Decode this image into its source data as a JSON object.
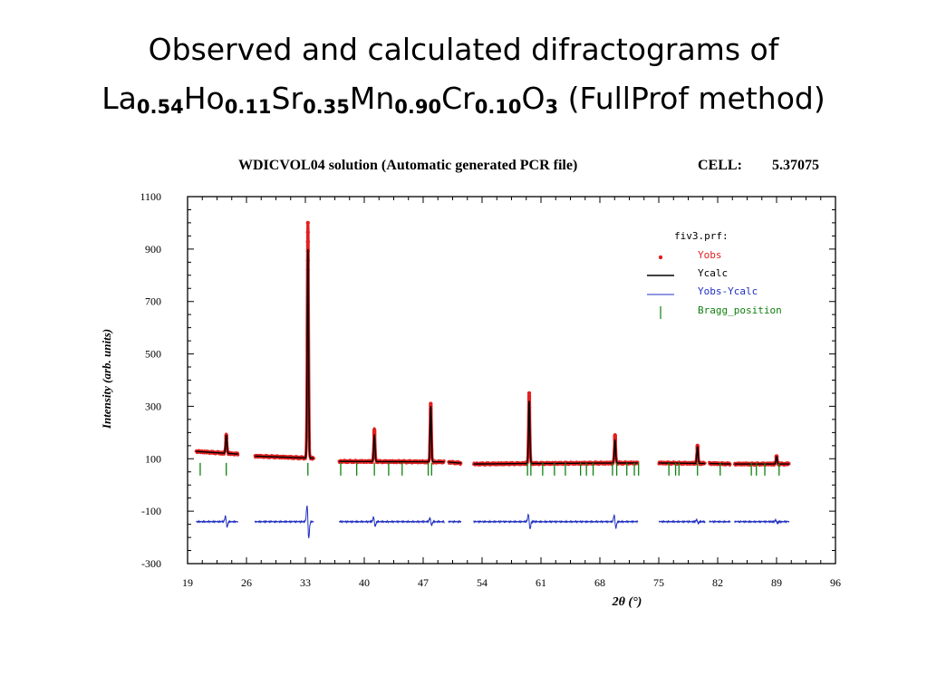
{
  "slide": {
    "title_line1": "Observed and calculated difractograms of",
    "formula": [
      {
        "el": "La",
        "sub": "0.54"
      },
      {
        "el": "Ho",
        "sub": "0.11"
      },
      {
        "el": "Sr",
        "sub": "0.35"
      },
      {
        "el": "Mn",
        "sub": "0.90"
      },
      {
        "el": "Cr",
        "sub": "0.10"
      },
      {
        "el": "O",
        "sub": "3"
      }
    ],
    "title_suffix": " (FullProf method)"
  },
  "chart_data": {
    "type": "line",
    "title": "WDICVOL04 solution (Automatic generated PCR file)",
    "cell_label": "CELL:",
    "cell_value": "5.37075",
    "xlabel": "2θ (°)",
    "ylabel": "Intensity (arb. units)",
    "xlim": [
      19,
      96
    ],
    "ylim": [
      -300,
      1100
    ],
    "xticks": [
      "19",
      "26",
      "33",
      "40",
      "47",
      "54",
      "61",
      "68",
      "75",
      "82",
      "89",
      "96"
    ],
    "yticks": [
      "1100",
      "900",
      "700",
      "500",
      "300",
      "100",
      "-100",
      "-300"
    ],
    "legend": {
      "title": "fiv3.prf:",
      "placement": "top-right",
      "entries": [
        {
          "name": "Yobs",
          "color": "#e02020",
          "marker": "dot"
        },
        {
          "name": "Ycalc",
          "color": "#000000",
          "marker": "line"
        },
        {
          "name": "Yobs-Ycalc",
          "color": "#2030c0",
          "marker": "line"
        },
        {
          "name": "Bragg_position",
          "color": "#108010",
          "marker": "tick"
        }
      ]
    },
    "segments": [
      [
        20,
        25
      ],
      [
        27,
        34
      ],
      [
        37,
        49.5
      ],
      [
        50,
        51.5
      ],
      [
        53,
        72.5
      ],
      [
        75,
        80.5
      ],
      [
        81,
        83.5
      ],
      [
        84,
        90.5
      ]
    ],
    "background": {
      "x": [
        20,
        25,
        27,
        34,
        37,
        49.5,
        53,
        60,
        72.5,
        75,
        80.5,
        81,
        83.5,
        84,
        90.5
      ],
      "y": [
        128,
        118,
        110,
        102,
        90,
        88,
        80,
        82,
        84,
        84,
        82,
        82,
        80,
        80,
        80
      ]
    },
    "observed_peaks": [
      {
        "x": 23.6,
        "height": 190
      },
      {
        "x": 33.3,
        "height": 1000
      },
      {
        "x": 41.2,
        "height": 210
      },
      {
        "x": 47.9,
        "height": 310
      },
      {
        "x": 59.6,
        "height": 350
      },
      {
        "x": 69.8,
        "height": 190
      },
      {
        "x": 79.6,
        "height": 150
      },
      {
        "x": 89.0,
        "height": 110
      }
    ],
    "calculated_peaks": [
      {
        "x": 23.6,
        "height": 190
      },
      {
        "x": 33.3,
        "height": 900
      },
      {
        "x": 41.2,
        "height": 190
      },
      {
        "x": 47.9,
        "height": 300
      },
      {
        "x": 59.6,
        "height": 320
      },
      {
        "x": 69.8,
        "height": 170
      },
      {
        "x": 79.6,
        "height": 145
      },
      {
        "x": 89.0,
        "height": 108
      }
    ],
    "bragg_positions": [
      20.5,
      23.6,
      33.3,
      37.2,
      39.1,
      41.2,
      42.9,
      44.5,
      47.6,
      48.0,
      59.4,
      59.8,
      61.2,
      62.6,
      63.9,
      65.7,
      66.4,
      67.2,
      69.5,
      70.0,
      71.2,
      72.1,
      72.6,
      76.2,
      77.0,
      77.4,
      79.6,
      82.3,
      86.0,
      86.6,
      87.6,
      89.3
    ],
    "bragg_level": 60,
    "difference_baseline": -140,
    "difference_peaks": [
      {
        "x": 23.6,
        "amplitude": 30
      },
      {
        "x": 33.3,
        "amplitude": 90
      },
      {
        "x": 41.2,
        "amplitude": 25
      },
      {
        "x": 47.9,
        "amplitude": 20
      },
      {
        "x": 59.6,
        "amplitude": 40
      },
      {
        "x": 69.8,
        "amplitude": 35
      },
      {
        "x": 79.6,
        "amplitude": 10
      },
      {
        "x": 89.0,
        "amplitude": 8
      }
    ]
  }
}
